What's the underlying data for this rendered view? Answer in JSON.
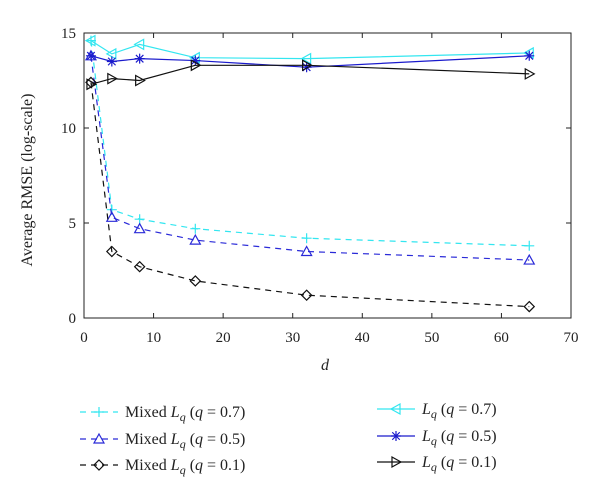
{
  "chart_data": {
    "type": "line",
    "xlabel": "d",
    "ylabel": "Average RMSE (log-scale)",
    "xlim": [
      0,
      70
    ],
    "ylim": [
      0,
      15
    ],
    "xticks": [
      0,
      10,
      20,
      30,
      40,
      50,
      60,
      70
    ],
    "yticks": [
      0,
      5,
      10,
      15
    ],
    "x": [
      1,
      4,
      8,
      16,
      32,
      64
    ],
    "grid": false,
    "legend_position": "below plot, two columns",
    "series": [
      {
        "key": "mixed07",
        "name": "Mixed L_q (q = 0.7)",
        "label": "Mixed",
        "q": "0.7",
        "color": "#33e6f0",
        "dash": "6,5",
        "marker": "plus",
        "values": [
          14.6,
          5.7,
          5.2,
          4.7,
          4.2,
          3.8
        ]
      },
      {
        "key": "mixed05",
        "name": "Mixed L_q (q = 0.5)",
        "label": "Mixed",
        "q": "0.5",
        "color": "#2a2ad8",
        "dash": "6,5",
        "marker": "triangle-up",
        "values": [
          13.8,
          5.3,
          4.7,
          4.1,
          3.5,
          3.05
        ]
      },
      {
        "key": "mixed01",
        "name": "Mixed L_q (q = 0.1)",
        "label": "Mixed",
        "q": "0.1",
        "color": "#111111",
        "dash": "6,5",
        "marker": "diamond",
        "values": [
          12.4,
          3.5,
          2.7,
          1.95,
          1.2,
          0.6
        ]
      },
      {
        "key": "lq07",
        "name": "L_q (q = 0.7)",
        "label": "",
        "q": "0.7",
        "color": "#33e6f0",
        "dash": "",
        "marker": "triangle-left",
        "values": [
          14.6,
          13.9,
          14.4,
          13.7,
          13.65,
          13.95
        ]
      },
      {
        "key": "lq05",
        "name": "L_q (q = 0.5)",
        "label": "",
        "q": "0.5",
        "color": "#1a1acc",
        "dash": "",
        "marker": "star",
        "values": [
          13.8,
          13.5,
          13.65,
          13.55,
          13.2,
          13.8
        ]
      },
      {
        "key": "lq01",
        "name": "L_q (q = 0.1)",
        "label": "",
        "q": "0.1",
        "color": "#111111",
        "dash": "",
        "marker": "triangle-right",
        "values": [
          12.3,
          12.6,
          12.5,
          13.3,
          13.3,
          12.85
        ]
      }
    ]
  }
}
